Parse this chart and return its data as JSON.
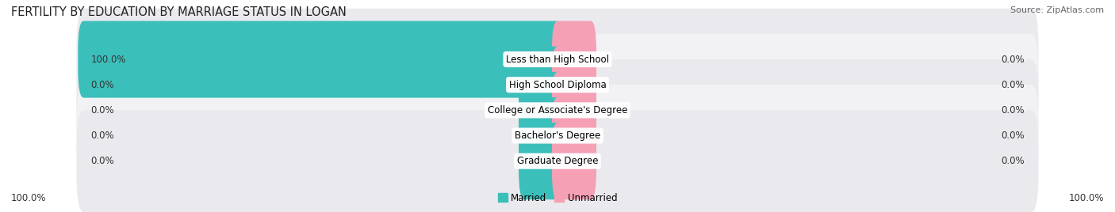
{
  "title": "FERTILITY BY EDUCATION BY MARRIAGE STATUS IN LOGAN",
  "source": "Source: ZipAtlas.com",
  "categories": [
    "Less than High School",
    "High School Diploma",
    "College or Associate's Degree",
    "Bachelor's Degree",
    "Graduate Degree"
  ],
  "married_values": [
    100.0,
    0.0,
    0.0,
    0.0,
    0.0
  ],
  "unmarried_values": [
    0.0,
    0.0,
    0.0,
    0.0,
    0.0
  ],
  "married_color": "#3bbfbb",
  "unmarried_color": "#f5a0b5",
  "label_bg_color": "#ffffff",
  "axis_max": 100.0,
  "title_fontsize": 10.5,
  "source_fontsize": 8,
  "label_fontsize": 8.5,
  "value_fontsize": 8.5,
  "fig_bg": "#ffffff",
  "row_bg": [
    "#eaeaee",
    "#f2f2f5"
  ]
}
